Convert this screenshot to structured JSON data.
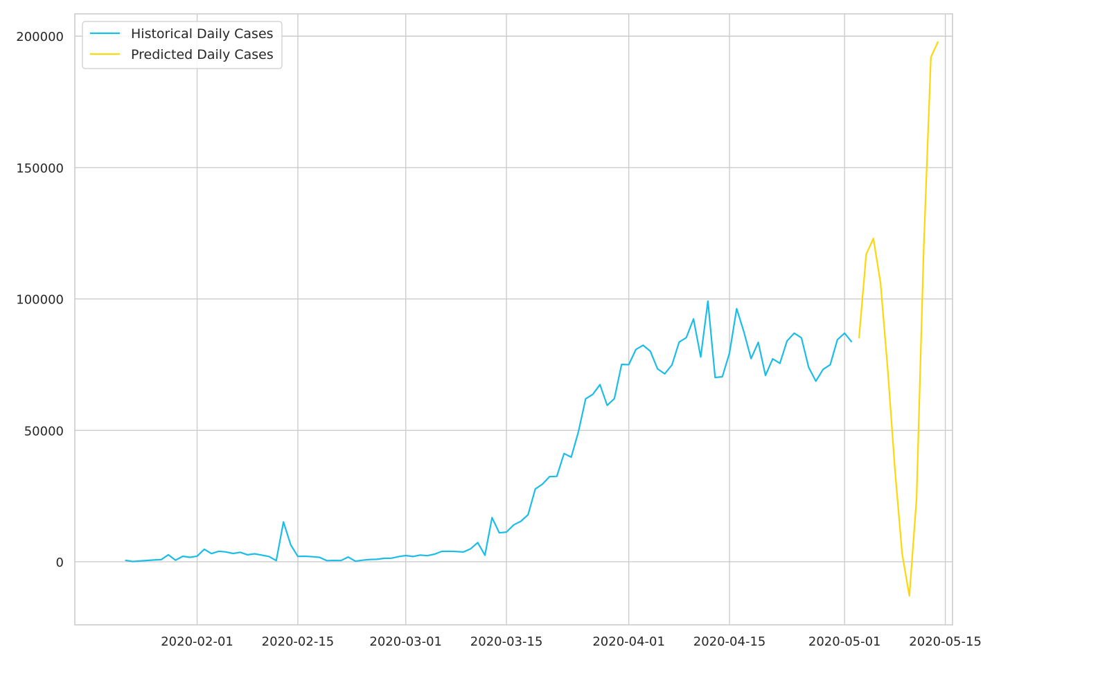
{
  "chart_data": {
    "type": "line",
    "title": "",
    "xlabel": "",
    "ylabel": "",
    "grid": true,
    "legend_position": "top-left",
    "x_axis_type": "date",
    "xlim": [
      "2020-01-15",
      "2020-05-16"
    ],
    "ylim": [
      -24000,
      208500
    ],
    "x_ticks": [
      "2020-02-01",
      "2020-02-15",
      "2020-03-01",
      "2020-03-15",
      "2020-04-01",
      "2020-04-15",
      "2020-05-01",
      "2020-05-15"
    ],
    "y_ticks": [
      0,
      50000,
      100000,
      150000,
      200000
    ],
    "series": [
      {
        "name": "Historical Daily Cases",
        "color": "#1ABCE8",
        "x": [
          "2020-01-22",
          "2020-01-23",
          "2020-01-24",
          "2020-01-25",
          "2020-01-26",
          "2020-01-27",
          "2020-01-28",
          "2020-01-29",
          "2020-01-30",
          "2020-01-31",
          "2020-02-01",
          "2020-02-02",
          "2020-02-03",
          "2020-02-04",
          "2020-02-05",
          "2020-02-06",
          "2020-02-07",
          "2020-02-08",
          "2020-02-09",
          "2020-02-10",
          "2020-02-11",
          "2020-02-12",
          "2020-02-13",
          "2020-02-14",
          "2020-02-15",
          "2020-02-16",
          "2020-02-17",
          "2020-02-18",
          "2020-02-19",
          "2020-02-20",
          "2020-02-21",
          "2020-02-22",
          "2020-02-23",
          "2020-02-24",
          "2020-02-25",
          "2020-02-26",
          "2020-02-27",
          "2020-02-28",
          "2020-02-29",
          "2020-03-01",
          "2020-03-02",
          "2020-03-03",
          "2020-03-04",
          "2020-03-05",
          "2020-03-06",
          "2020-03-07",
          "2020-03-08",
          "2020-03-09",
          "2020-03-10",
          "2020-03-11",
          "2020-03-12",
          "2020-03-13",
          "2020-03-14",
          "2020-03-15",
          "2020-03-16",
          "2020-03-17",
          "2020-03-18",
          "2020-03-19",
          "2020-03-20",
          "2020-03-21",
          "2020-03-22",
          "2020-03-23",
          "2020-03-24",
          "2020-03-25",
          "2020-03-26",
          "2020-03-27",
          "2020-03-28",
          "2020-03-29",
          "2020-03-30",
          "2020-03-31",
          "2020-04-01",
          "2020-04-02",
          "2020-04-03",
          "2020-04-04",
          "2020-04-05",
          "2020-04-06",
          "2020-04-07",
          "2020-04-08",
          "2020-04-09",
          "2020-04-10",
          "2020-04-11",
          "2020-04-12",
          "2020-04-13",
          "2020-04-14",
          "2020-04-15",
          "2020-04-16",
          "2020-04-17",
          "2020-04-18",
          "2020-04-19",
          "2020-04-20",
          "2020-04-21",
          "2020-04-22",
          "2020-04-23",
          "2020-04-24",
          "2020-04-25",
          "2020-04-26",
          "2020-04-27",
          "2020-04-28",
          "2020-04-29",
          "2020-04-30",
          "2020-05-01",
          "2020-05-02"
        ],
        "y": [
          555,
          98,
          287,
          493,
          684,
          809,
          2651,
          588,
          2068,
          1693,
          2111,
          4749,
          3094,
          3995,
          3727,
          3160,
          3597,
          2651,
          3020,
          2529,
          1981,
          433,
          15145,
          6465,
          2055,
          2100,
          1900,
          1700,
          430,
          500,
          450,
          1800,
          200,
          600,
          850,
          950,
          1300,
          1350,
          1950,
          2350,
          2000,
          2550,
          2300,
          2900,
          3950,
          4000,
          3900,
          3700,
          4900,
          7300,
          2500,
          16800,
          11000,
          11300,
          14000,
          15400,
          17900,
          27700,
          29500,
          32400,
          32500,
          41200,
          39800,
          49500,
          62000,
          63700,
          67400,
          59500,
          62100,
          75100,
          75000,
          80800,
          82400,
          80100,
          73400,
          71500,
          74900,
          83600,
          85300,
          92400,
          77900,
          99200,
          70100,
          70400,
          79500,
          96300,
          87500,
          77300,
          83500,
          70900,
          77200,
          75500,
          84000,
          87000,
          85200,
          74000,
          68700,
          73200,
          75000,
          84500,
          87000,
          83600
        ]
      },
      {
        "name": "Predicted Daily Cases",
        "color": "#FDD70A",
        "x": [
          "2020-05-03",
          "2020-05-04",
          "2020-05-05",
          "2020-05-06",
          "2020-05-07",
          "2020-05-08",
          "2020-05-09",
          "2020-05-10",
          "2020-05-11",
          "2020-05-12",
          "2020-05-13",
          "2020-05-14"
        ],
        "y": [
          85000,
          117000,
          123000,
          106000,
          73000,
          35000,
          3000,
          -13000,
          24000,
          120000,
          192000,
          198000
        ]
      }
    ]
  }
}
